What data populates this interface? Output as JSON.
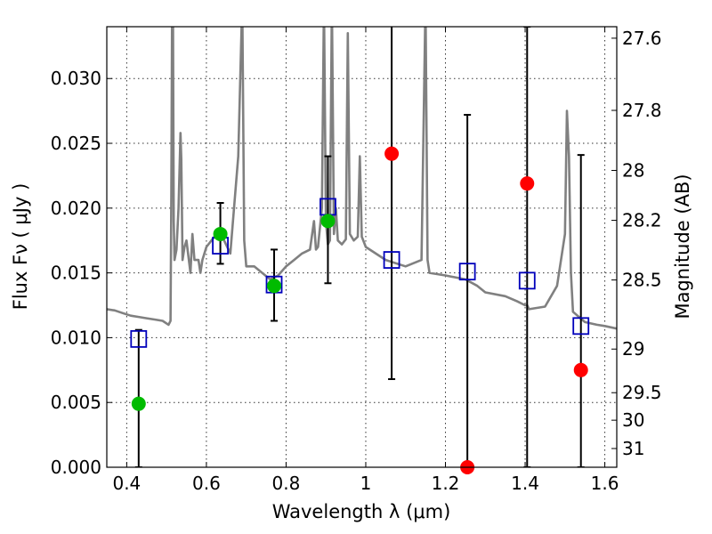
{
  "chart_data": {
    "type": "scatter",
    "xlabel": "Wavelength  λ (μm)",
    "ylabel": "Flux  Fν  ( μJy )",
    "ylabel_right": "Magnitude (AB)",
    "xlim": [
      0.35,
      1.63
    ],
    "ylim": [
      0,
      0.034
    ],
    "grid": true,
    "xticks": [
      0.4,
      0.6,
      0.8,
      1.0,
      1.2,
      1.4,
      1.6
    ],
    "xtick_labels": [
      "0.4",
      "0.6",
      "0.8",
      "1",
      "1.2",
      "1.4",
      "1.6"
    ],
    "yticks": [
      0,
      0.005,
      0.01,
      0.015,
      0.02,
      0.025,
      0.03
    ],
    "ytick_labels": [
      "0.000",
      "0.005",
      "0.010",
      "0.015",
      "0.020",
      "0.025",
      "0.030"
    ],
    "mag_ticks": [
      27.6,
      27.8,
      28,
      28.2,
      28.5,
      29,
      29.5,
      30,
      31
    ],
    "mag_tick_labels": [
      "27.6",
      "27.8",
      "28",
      "28.2",
      "28.5",
      "29",
      "29.5",
      "30",
      "31"
    ],
    "spectrum": {
      "color": "#808080",
      "x": [
        0.35,
        0.37,
        0.39,
        0.41,
        0.43,
        0.45,
        0.47,
        0.49,
        0.505,
        0.51,
        0.512,
        0.514,
        0.516,
        0.518,
        0.52,
        0.525,
        0.53,
        0.535,
        0.537,
        0.54,
        0.545,
        0.55,
        0.56,
        0.565,
        0.57,
        0.58,
        0.585,
        0.59,
        0.6,
        0.62,
        0.63,
        0.64,
        0.66,
        0.68,
        0.69,
        0.695,
        0.7,
        0.72,
        0.74,
        0.76,
        0.78,
        0.8,
        0.82,
        0.84,
        0.86,
        0.87,
        0.875,
        0.88,
        0.89,
        0.895,
        0.9,
        0.905,
        0.91,
        0.915,
        0.92,
        0.925,
        0.93,
        0.94,
        0.95,
        0.955,
        0.96,
        0.97,
        0.98,
        0.985,
        0.99,
        1.0,
        1.05,
        1.1,
        1.14,
        1.15,
        1.155,
        1.16,
        1.2,
        1.25,
        1.28,
        1.3,
        1.35,
        1.38,
        1.4,
        1.405,
        1.41,
        1.45,
        1.48,
        1.5,
        1.505,
        1.51,
        1.515,
        1.52,
        1.55,
        1.58,
        1.6,
        1.63
      ],
      "y": [
        0.0122,
        0.0121,
        0.0119,
        0.0117,
        0.0116,
        0.0115,
        0.0114,
        0.0113,
        0.011,
        0.0113,
        0.021,
        0.036,
        0.036,
        0.019,
        0.016,
        0.0168,
        0.02,
        0.0258,
        0.0238,
        0.016,
        0.017,
        0.0175,
        0.015,
        0.018,
        0.016,
        0.016,
        0.015,
        0.016,
        0.017,
        0.0178,
        0.018,
        0.0178,
        0.0165,
        0.024,
        0.036,
        0.0175,
        0.0155,
        0.0155,
        0.015,
        0.0145,
        0.0148,
        0.0155,
        0.016,
        0.0165,
        0.0168,
        0.019,
        0.0168,
        0.017,
        0.02,
        0.036,
        0.019,
        0.0172,
        0.0175,
        0.036,
        0.018,
        0.02,
        0.0175,
        0.0172,
        0.0176,
        0.0335,
        0.018,
        0.0175,
        0.0178,
        0.024,
        0.0178,
        0.017,
        0.016,
        0.0155,
        0.016,
        0.036,
        0.016,
        0.015,
        0.0148,
        0.0145,
        0.014,
        0.0135,
        0.0132,
        0.0128,
        0.0125,
        0.0125,
        0.0122,
        0.0124,
        0.014,
        0.018,
        0.0275,
        0.024,
        0.015,
        0.012,
        0.0112,
        0.011,
        0.0109,
        0.0107
      ]
    },
    "series": [
      {
        "marker": "square",
        "color": "#0000bb",
        "points": [
          {
            "x": 0.43,
            "y": 0.0099
          },
          {
            "x": 0.635,
            "y": 0.0171
          },
          {
            "x": 0.77,
            "y": 0.0141
          },
          {
            "x": 0.905,
            "y": 0.0201
          },
          {
            "x": 1.065,
            "y": 0.016
          },
          {
            "x": 1.255,
            "y": 0.0151
          },
          {
            "x": 1.405,
            "y": 0.0144
          },
          {
            "x": 1.54,
            "y": 0.0109
          }
        ]
      },
      {
        "marker": "circle",
        "color": "#00bb00",
        "points": [
          {
            "x": 0.43,
            "y": 0.0049,
            "err_low": 0.0049,
            "err_high": 0.0057
          },
          {
            "x": 0.635,
            "y": 0.018,
            "err_low": 0.0023,
            "err_high": 0.0024
          },
          {
            "x": 0.77,
            "y": 0.014,
            "err_low": 0.0027,
            "err_high": 0.0028
          },
          {
            "x": 0.905,
            "y": 0.019,
            "err_low": 0.0048,
            "err_high": 0.005
          }
        ]
      },
      {
        "marker": "circle",
        "color": "#ff0000",
        "points": [
          {
            "x": 1.065,
            "y": 0.0242,
            "err_low": 0.0174,
            "err_high": 0.01
          },
          {
            "x": 1.255,
            "y": 0.0,
            "err_low": 0.0,
            "err_high": 0.0272
          },
          {
            "x": 1.405,
            "y": 0.0219,
            "err_low": 0.0219,
            "err_high": 0.0121
          },
          {
            "x": 1.54,
            "y": 0.0075,
            "err_low": 0.0075,
            "err_high": 0.0166
          }
        ]
      }
    ]
  }
}
